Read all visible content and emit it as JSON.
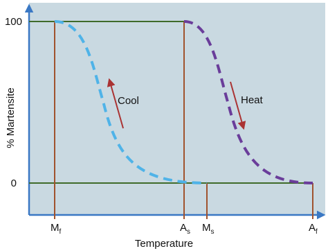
{
  "y_axis": {
    "title": "% Martensite",
    "ticks": [
      "100",
      "0"
    ]
  },
  "x_axis": {
    "title": "Temperature",
    "ticks": [
      {
        "main": "M",
        "sub": "f"
      },
      {
        "main": "A",
        "sub": "s"
      },
      {
        "main": "M",
        "sub": "s"
      },
      {
        "main": "A",
        "sub": "f"
      }
    ]
  },
  "curves": [
    {
      "label": "Cool"
    },
    {
      "label": "Heat"
    }
  ]
}
